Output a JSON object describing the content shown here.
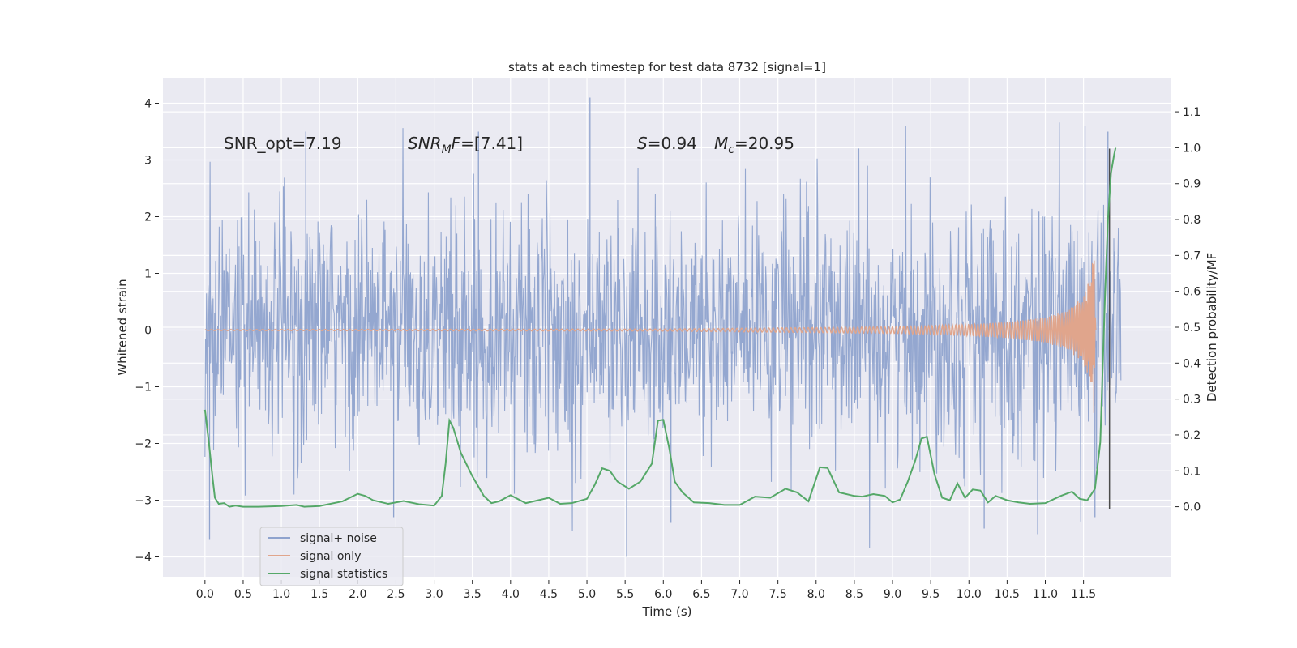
{
  "chart_data": {
    "type": "line",
    "title": "stats at each timestep for test data 8732 [signal=1]",
    "xlabel": "Time (s)",
    "ylabel": "Whitened strain",
    "ylabel_right": "Detection probability/MF",
    "xlim": [
      -0.55,
      12.65
    ],
    "ylim": [
      -4.35,
      4.45
    ],
    "ylim_right": [
      -0.195,
      1.195
    ],
    "x_ticks": [
      0.0,
      0.5,
      1.0,
      1.5,
      2.0,
      2.5,
      3.0,
      3.5,
      4.0,
      4.5,
      5.0,
      5.5,
      6.0,
      6.5,
      7.0,
      7.5,
      8.0,
      8.5,
      9.0,
      9.5,
      10.0,
      10.5,
      11.0,
      11.5
    ],
    "x_tick_labels": [
      "0.0",
      "0.5",
      "1.0",
      "1.5",
      "2.0",
      "2.5",
      "3.0",
      "3.5",
      "4.0",
      "4.5",
      "5.0",
      "5.5",
      "6.0",
      "6.5",
      "7.0",
      "7.5",
      "8.0",
      "8.5",
      "9.0",
      "9.5",
      "10.0",
      "10.5",
      "11.0",
      "11.5"
    ],
    "y_ticks": [
      -4,
      -3,
      -2,
      -1,
      0,
      1,
      2,
      3,
      4
    ],
    "y_tick_labels": [
      "−4",
      "−3",
      "−2",
      "−1",
      "0",
      "1",
      "2",
      "3",
      "4"
    ],
    "y_right_ticks": [
      0.0,
      0.1,
      0.2,
      0.3,
      0.4,
      0.5,
      0.6,
      0.7,
      0.8,
      0.9,
      1.0,
      1.1
    ],
    "y_right_tick_labels": [
      "0.0",
      "0.1",
      "0.2",
      "0.3",
      "0.4",
      "0.5",
      "0.6",
      "0.7",
      "0.8",
      "0.9",
      "1.0",
      "1.1"
    ],
    "grid": true,
    "annotations": {
      "snr_opt": "SNR_opt=7.19",
      "snr_mf_main": "SNR",
      "snr_mf_sub": "M",
      "snr_mf_italic_tail": "F",
      "snr_mf_value": "=[7.41]",
      "s_symbol": "S",
      "s_value": "=0.94",
      "mc_symbol": "M",
      "mc_sub": "c",
      "mc_value": "=20.95"
    },
    "legend": {
      "location": "lower-left",
      "entries": [
        "signal+ noise",
        "signal only",
        "signal statistics"
      ]
    },
    "series": [
      {
        "name": "signal+ noise",
        "axis": "left",
        "color": "#8fa3ce",
        "description": "dense whitened noise trace",
        "x_range": [
          0.0,
          11.99
        ],
        "typical_envelope": [
          -2.2,
          2.1
        ],
        "peak_values": [
          {
            "x": 0.06,
            "y": -3.7
          },
          {
            "x": 1.32,
            "y": 3.5
          },
          {
            "x": 2.47,
            "y": -3.3
          },
          {
            "x": 3.58,
            "y": 3.5
          },
          {
            "x": 5.04,
            "y": 4.1
          },
          {
            "x": 5.52,
            "y": -4.0
          },
          {
            "x": 6.1,
            "y": -3.4
          },
          {
            "x": 10.2,
            "y": -3.5
          },
          {
            "x": 10.9,
            "y": -3.6
          },
          {
            "x": 11.52,
            "y": 3.6
          },
          {
            "x": 11.65,
            "y": -3.3
          },
          {
            "x": 11.82,
            "y": 3.5
          }
        ]
      },
      {
        "name": "signal only",
        "axis": "left",
        "color": "#e0a58c",
        "description": "chirp growing in amplitude, merger near t=11.65 s",
        "amplitude_points": [
          {
            "x": 0.0,
            "y": 0.01
          },
          {
            "x": 6.0,
            "y": 0.02
          },
          {
            "x": 9.0,
            "y": 0.06
          },
          {
            "x": 10.0,
            "y": 0.1
          },
          {
            "x": 10.5,
            "y": 0.14
          },
          {
            "x": 11.0,
            "y": 0.22
          },
          {
            "x": 11.3,
            "y": 0.35
          },
          {
            "x": 11.5,
            "y": 0.6
          },
          {
            "x": 11.6,
            "y": 1.0
          },
          {
            "x": 11.65,
            "y": 1.65
          },
          {
            "x": 11.66,
            "y": 0.0
          }
        ]
      },
      {
        "name": "signal statistics",
        "axis": "right",
        "color": "#55a868",
        "x": [
          0.0,
          0.05,
          0.1,
          0.13,
          0.18,
          0.25,
          0.32,
          0.4,
          0.5,
          0.7,
          1.0,
          1.2,
          1.3,
          1.5,
          1.8,
          2.0,
          2.1,
          2.2,
          2.4,
          2.6,
          2.8,
          3.0,
          3.1,
          3.15,
          3.2,
          3.25,
          3.35,
          3.5,
          3.65,
          3.75,
          3.85,
          4.0,
          4.2,
          4.5,
          4.65,
          4.8,
          5.0,
          5.1,
          5.2,
          5.3,
          5.4,
          5.55,
          5.7,
          5.85,
          5.93,
          6.0,
          6.08,
          6.15,
          6.25,
          6.4,
          6.6,
          6.8,
          7.0,
          7.2,
          7.4,
          7.6,
          7.75,
          7.9,
          8.05,
          8.15,
          8.3,
          8.5,
          8.6,
          8.75,
          8.9,
          9.0,
          9.1,
          9.2,
          9.3,
          9.38,
          9.45,
          9.55,
          9.65,
          9.75,
          9.85,
          9.95,
          10.05,
          10.15,
          10.25,
          10.35,
          10.5,
          10.65,
          10.8,
          11.0,
          11.2,
          11.35,
          11.45,
          11.55,
          11.65,
          11.72,
          11.78,
          11.82,
          11.86,
          11.9,
          11.92
        ],
        "y": [
          0.27,
          0.18,
          0.08,
          0.025,
          0.008,
          0.01,
          0.0,
          0.003,
          0.0,
          0.0,
          0.002,
          0.005,
          0.0,
          0.002,
          0.015,
          0.036,
          0.03,
          0.018,
          0.008,
          0.016,
          0.007,
          0.003,
          0.03,
          0.12,
          0.24,
          0.22,
          0.15,
          0.085,
          0.03,
          0.01,
          0.015,
          0.032,
          0.01,
          0.025,
          0.008,
          0.01,
          0.022,
          0.06,
          0.107,
          0.1,
          0.07,
          0.05,
          0.07,
          0.12,
          0.24,
          0.242,
          0.16,
          0.07,
          0.04,
          0.012,
          0.01,
          0.005,
          0.005,
          0.028,
          0.025,
          0.05,
          0.04,
          0.015,
          0.11,
          0.108,
          0.04,
          0.03,
          0.028,
          0.035,
          0.03,
          0.012,
          0.02,
          0.07,
          0.13,
          0.19,
          0.195,
          0.09,
          0.025,
          0.018,
          0.065,
          0.025,
          0.048,
          0.045,
          0.012,
          0.03,
          0.018,
          0.012,
          0.008,
          0.01,
          0.03,
          0.042,
          0.022,
          0.018,
          0.05,
          0.18,
          0.58,
          0.8,
          0.93,
          0.98,
          1.0
        ]
      }
    ]
  }
}
